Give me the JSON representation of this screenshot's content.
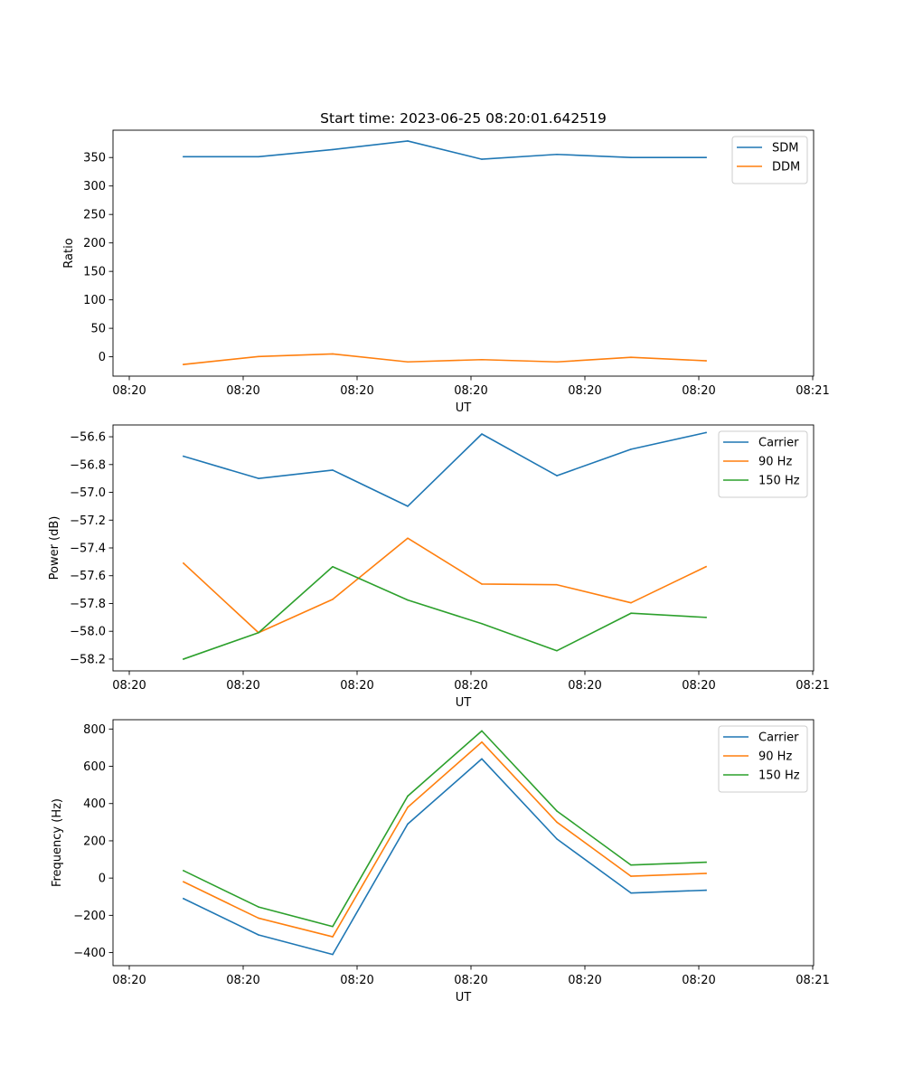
{
  "title": "Start time: 2023-06-25 08:20:01.642519",
  "colors": {
    "blue": "#1f77b4",
    "orange": "#ff7f0e",
    "green": "#2ca02c"
  },
  "chart_data": [
    {
      "type": "line",
      "title": "Start time: 2023-06-25 08:20:01.642519",
      "xlabel": "UT",
      "ylabel": "Ratio",
      "xticks": [
        "08:20",
        "08:20",
        "08:20",
        "08:20",
        "08:20",
        "08:20",
        "08:21"
      ],
      "yticks": [
        0,
        50,
        100,
        150,
        200,
        250,
        300,
        350
      ],
      "ylim": [
        -34,
        398
      ],
      "legend": "top-right",
      "grid": false,
      "series": [
        {
          "name": "SDM",
          "color": "#1f77b4",
          "values": [
            351.5,
            351.5,
            364,
            379,
            347,
            355.5,
            350,
            350
          ]
        },
        {
          "name": "DDM",
          "color": "#ff7f0e",
          "values": [
            -13.5,
            0.5,
            5,
            -9,
            -5,
            -9,
            -1,
            -7
          ]
        }
      ]
    },
    {
      "type": "line",
      "xlabel": "UT",
      "ylabel": "Power (dB)",
      "xticks": [
        "08:20",
        "08:20",
        "08:20",
        "08:20",
        "08:20",
        "08:20",
        "08:21"
      ],
      "yticks": [
        -58.2,
        -58.0,
        -57.8,
        -57.6,
        -57.4,
        -57.2,
        -57.0,
        -56.8,
        -56.6
      ],
      "ylim": [
        -58.285,
        -56.515
      ],
      "legend": "top-right",
      "grid": false,
      "series": [
        {
          "name": "Carrier",
          "color": "#1f77b4",
          "values": [
            -56.74,
            -56.9,
            -56.84,
            -57.1,
            -56.58,
            -56.88,
            -56.69,
            -56.57
          ]
        },
        {
          "name": "90 Hz",
          "color": "#ff7f0e",
          "values": [
            -57.51,
            -58.01,
            -57.77,
            -57.33,
            -57.66,
            -57.665,
            -57.795,
            -57.535
          ]
        },
        {
          "name": "150 Hz",
          "color": "#2ca02c",
          "values": [
            -58.2,
            -58.01,
            -57.535,
            -57.775,
            -57.945,
            -58.14,
            -57.87,
            -57.9
          ]
        }
      ]
    },
    {
      "type": "line",
      "xlabel": "UT",
      "ylabel": "Frequency (Hz)",
      "xticks": [
        "08:20",
        "08:20",
        "08:20",
        "08:20",
        "08:20",
        "08:20",
        "08:21"
      ],
      "yticks": [
        -400,
        -200,
        0,
        200,
        400,
        600,
        800
      ],
      "ylim": [
        -470,
        850
      ],
      "legend": "top-right",
      "grid": false,
      "series": [
        {
          "name": "Carrier",
          "color": "#1f77b4",
          "values": [
            -110,
            -305,
            -410,
            290,
            640,
            210,
            -80,
            -65
          ]
        },
        {
          "name": "90 Hz",
          "color": "#ff7f0e",
          "values": [
            -20,
            -215,
            -315,
            380,
            730,
            300,
            10,
            25
          ]
        },
        {
          "name": "150 Hz",
          "color": "#2ca02c",
          "values": [
            40,
            -155,
            -260,
            440,
            790,
            360,
            70,
            85
          ]
        }
      ]
    }
  ]
}
